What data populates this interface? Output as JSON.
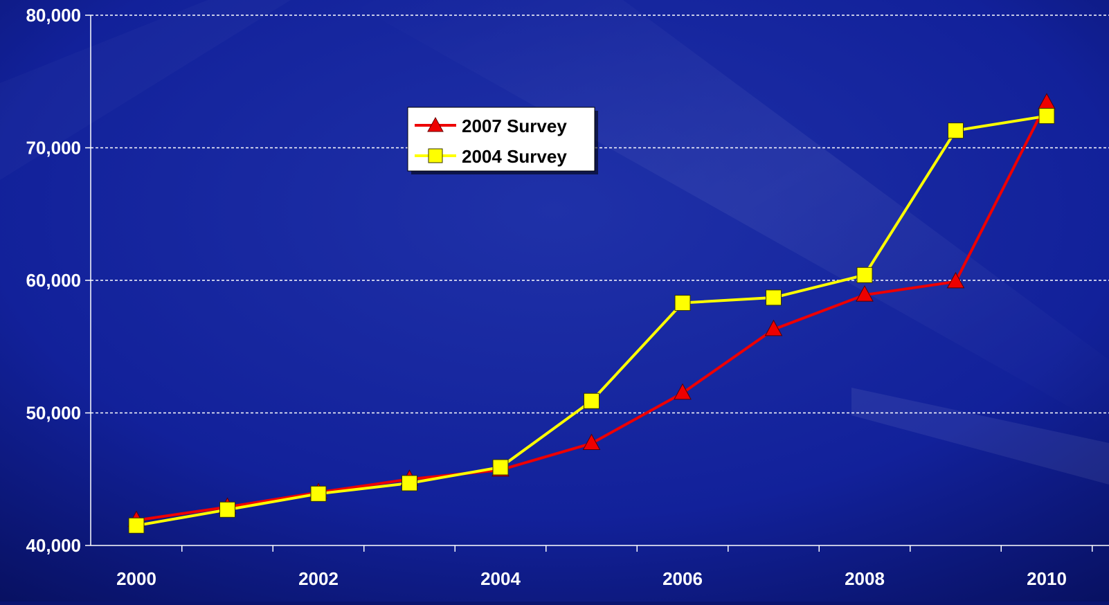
{
  "chart_data": {
    "type": "line",
    "title": "",
    "xlabel": "",
    "ylabel": "",
    "x": [
      2000,
      2001,
      2002,
      2003,
      2004,
      2005,
      2006,
      2007,
      2008,
      2009,
      2010
    ],
    "x_tick_labels": [
      "2000",
      "2002",
      "2004",
      "2006",
      "2008",
      "2010"
    ],
    "y_tick_labels": [
      "40,000",
      "50,000",
      "60,000",
      "70,000",
      "80,000"
    ],
    "ylim": [
      40000,
      80000
    ],
    "grid": "horizontal dashed",
    "legend_position": "upper-center",
    "series": [
      {
        "name": "2007 Survey",
        "color": "#ee0000",
        "marker": "triangle",
        "values": [
          41900,
          42900,
          44000,
          45000,
          45700,
          47700,
          51500,
          56300,
          58900,
          59900,
          73400
        ]
      },
      {
        "name": "2004 Survey",
        "color": "#ffff00",
        "marker": "square",
        "values": [
          41500,
          42700,
          43900,
          44700,
          45900,
          50900,
          58300,
          58700,
          60400,
          71300,
          72400
        ]
      }
    ]
  }
}
